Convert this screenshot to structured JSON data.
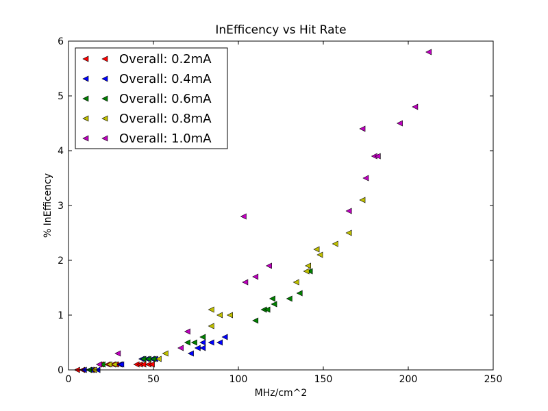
{
  "chart_data": {
    "type": "scatter",
    "title": "InEfficency vs Hit Rate",
    "xlabel": "MHz/cm^2",
    "ylabel": "% InEfficency",
    "xlim": [
      0,
      250
    ],
    "ylim": [
      0,
      6
    ],
    "xticks": [
      0,
      50,
      100,
      150,
      200,
      250
    ],
    "yticks": [
      0,
      1,
      2,
      3,
      4,
      5,
      6
    ],
    "grid": false,
    "legend_position": "top-left",
    "marker": "left-triangle",
    "series": [
      {
        "name": "Overall: 0.2mA",
        "color": "#ff0000",
        "points": [
          [
            5,
            0.0
          ],
          [
            8,
            0.0
          ],
          [
            14,
            0.0
          ],
          [
            19,
            0.1
          ],
          [
            23,
            0.1
          ],
          [
            26,
            0.1
          ],
          [
            28,
            0.1
          ],
          [
            30,
            0.1
          ],
          [
            40,
            0.1
          ],
          [
            42,
            0.1
          ],
          [
            44,
            0.1
          ],
          [
            47,
            0.1
          ],
          [
            49,
            0.1
          ]
        ]
      },
      {
        "name": "Overall: 0.4mA",
        "color": "#0000ff",
        "points": [
          [
            9,
            0.0
          ],
          [
            13,
            0.0
          ],
          [
            17,
            0.0
          ],
          [
            30,
            0.1
          ],
          [
            31,
            0.1
          ],
          [
            43,
            0.2
          ],
          [
            46,
            0.2
          ],
          [
            49,
            0.2
          ],
          [
            51,
            0.2
          ],
          [
            72,
            0.3
          ],
          [
            76,
            0.4
          ],
          [
            79,
            0.4
          ],
          [
            84,
            0.5
          ],
          [
            89,
            0.5
          ],
          [
            92,
            0.6
          ],
          [
            79,
            0.5
          ]
        ]
      },
      {
        "name": "Overall: 0.6mA",
        "color": "#008000",
        "points": [
          [
            12,
            0.0
          ],
          [
            15,
            0.0
          ],
          [
            20,
            0.1
          ],
          [
            44,
            0.2
          ],
          [
            47,
            0.2
          ],
          [
            50,
            0.2
          ],
          [
            70,
            0.5
          ],
          [
            74,
            0.5
          ],
          [
            79,
            0.6
          ],
          [
            110,
            0.9
          ],
          [
            115,
            1.1
          ],
          [
            117,
            1.1
          ],
          [
            120,
            1.3
          ],
          [
            121,
            1.2
          ],
          [
            130,
            1.3
          ],
          [
            136,
            1.4
          ],
          [
            142,
            1.8
          ]
        ]
      },
      {
        "name": "Overall: 0.8mA",
        "color": "#bfbf00",
        "points": [
          [
            15,
            0.0
          ],
          [
            24,
            0.1
          ],
          [
            27,
            0.1
          ],
          [
            53,
            0.2
          ],
          [
            57,
            0.3
          ],
          [
            84,
            0.8
          ],
          [
            84,
            1.1
          ],
          [
            89,
            1.0
          ],
          [
            95,
            1.0
          ],
          [
            134,
            1.6
          ],
          [
            140,
            1.8
          ],
          [
            141,
            1.9
          ],
          [
            146,
            2.2
          ],
          [
            148,
            2.1
          ],
          [
            157,
            2.3
          ],
          [
            165,
            2.5
          ],
          [
            173,
            3.1
          ]
        ]
      },
      {
        "name": "Overall: 1.0mA",
        "color": "#bf00bf",
        "points": [
          [
            18,
            0.1
          ],
          [
            29,
            0.3
          ],
          [
            66,
            0.4
          ],
          [
            70,
            0.7
          ],
          [
            103,
            2.8
          ],
          [
            104,
            1.6
          ],
          [
            110,
            1.7
          ],
          [
            118,
            1.9
          ],
          [
            165,
            2.9
          ],
          [
            173,
            4.4
          ],
          [
            175,
            3.5
          ],
          [
            180,
            3.9
          ],
          [
            182,
            3.9
          ],
          [
            195,
            4.5
          ],
          [
            204,
            4.8
          ],
          [
            212,
            5.8
          ]
        ]
      }
    ]
  }
}
